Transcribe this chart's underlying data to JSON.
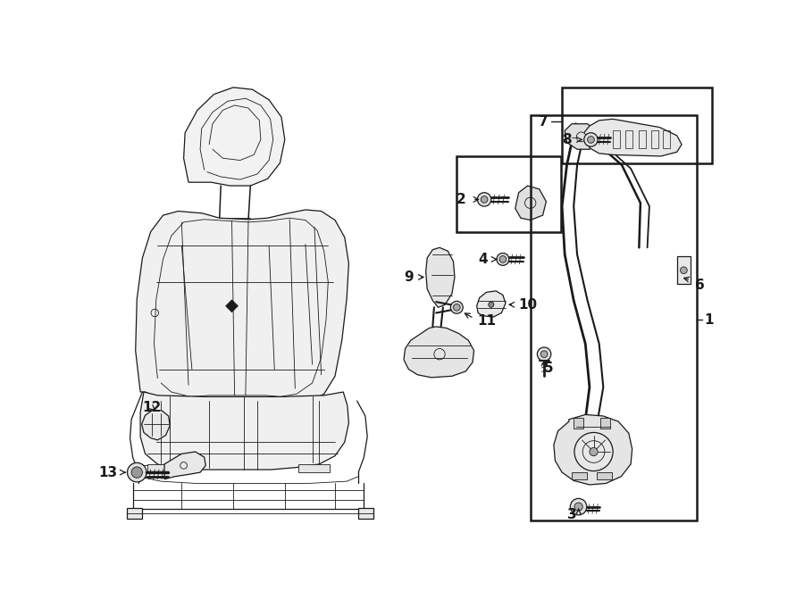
{
  "bg_color": "#ffffff",
  "line_color": "#1a1a1a",
  "fig_width": 9.0,
  "fig_height": 6.62,
  "dpi": 100,
  "xlim": [
    0,
    9.0
  ],
  "ylim": [
    0,
    6.62
  ]
}
